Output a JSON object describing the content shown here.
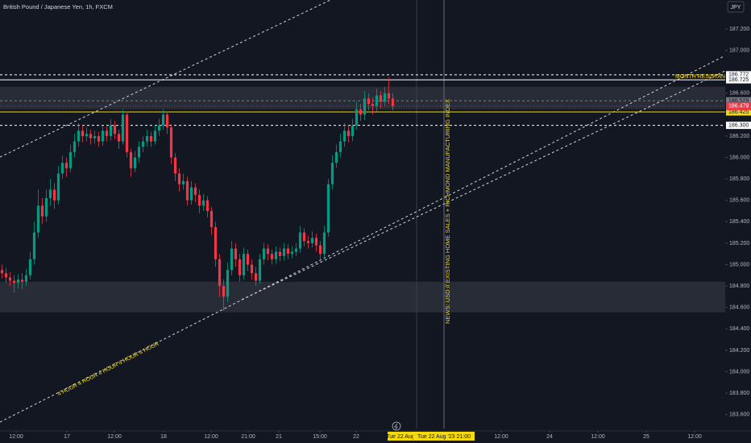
{
  "chart_data": {
    "type": "candlestick",
    "title": "British Pound / Japanese Yen, 1h, FXCM",
    "currency": "JPY",
    "up_color": "#089981",
    "down_color": "#f23645",
    "open": [
      184.95,
      184.92,
      184.88,
      184.85,
      184.83,
      184.86,
      184.84,
      184.9,
      185.05,
      185.3,
      185.55,
      185.45,
      185.62,
      185.7,
      185.6,
      185.85,
      185.95,
      185.9,
      186.05,
      186.15,
      186.25,
      186.2,
      186.22,
      186.18,
      186.2,
      186.15,
      186.25,
      186.2,
      186.3,
      186.22,
      186.15,
      186.4,
      186.05,
      185.9,
      186.0,
      186.1,
      186.15,
      186.2,
      186.15,
      186.25,
      186.3,
      186.4,
      186.28,
      186.0,
      185.85,
      185.75,
      185.78,
      185.6,
      185.72,
      185.65,
      185.55,
      185.6,
      185.5,
      185.35,
      185.05,
      184.8,
      184.7,
      184.95,
      185.15,
      185.05,
      184.9,
      185.1,
      185.0,
      184.92,
      184.85,
      185.05,
      185.15,
      185.1,
      185.05,
      185.12,
      185.08,
      185.15,
      185.1,
      185.12,
      185.15,
      185.3,
      185.22,
      185.2,
      185.25,
      185.18,
      185.1,
      185.3,
      185.75,
      185.95,
      186.05,
      186.15,
      186.25,
      186.2,
      186.3,
      186.45,
      186.4,
      186.55,
      186.5,
      186.48,
      186.58,
      186.52,
      186.6,
      186.55
    ],
    "high": [
      185.0,
      184.97,
      184.93,
      184.9,
      184.91,
      184.92,
      184.96,
      185.12,
      185.4,
      185.7,
      185.62,
      185.7,
      185.8,
      185.76,
      185.92,
      186.02,
      186.0,
      186.12,
      186.22,
      186.32,
      186.3,
      186.28,
      186.26,
      186.25,
      186.24,
      186.3,
      186.29,
      186.36,
      186.34,
      186.26,
      186.45,
      186.43,
      186.08,
      186.06,
      186.15,
      186.2,
      186.26,
      186.24,
      186.3,
      186.36,
      186.45,
      186.43,
      186.31,
      186.04,
      185.9,
      185.85,
      185.82,
      185.78,
      185.76,
      185.7,
      185.66,
      185.64,
      185.54,
      185.4,
      185.1,
      184.86,
      185.02,
      185.22,
      185.2,
      185.1,
      185.16,
      185.14,
      185.05,
      184.98,
      185.1,
      185.2,
      185.19,
      185.14,
      185.17,
      185.16,
      185.2,
      185.19,
      185.17,
      185.2,
      185.36,
      185.34,
      185.27,
      185.31,
      185.29,
      185.22,
      185.36,
      185.8,
      186.02,
      186.12,
      186.22,
      186.32,
      186.3,
      186.36,
      186.52,
      186.5,
      186.62,
      186.6,
      186.56,
      186.64,
      186.62,
      186.66,
      186.75,
      186.6
    ],
    "low": [
      184.87,
      184.83,
      184.8,
      184.74,
      184.78,
      184.77,
      184.8,
      184.86,
      185.0,
      185.25,
      185.38,
      185.4,
      185.55,
      185.52,
      185.56,
      185.8,
      185.82,
      185.86,
      186.0,
      186.1,
      186.14,
      186.15,
      186.12,
      186.13,
      186.1,
      186.11,
      186.15,
      186.16,
      186.17,
      186.08,
      186.12,
      186.0,
      185.82,
      185.86,
      185.95,
      186.05,
      186.1,
      186.1,
      186.12,
      186.2,
      186.26,
      186.22,
      185.94,
      185.78,
      185.68,
      185.7,
      185.55,
      185.56,
      185.58,
      185.48,
      185.5,
      185.44,
      185.28,
      184.98,
      184.7,
      184.57,
      184.65,
      184.9,
      184.98,
      184.84,
      184.86,
      184.94,
      184.86,
      184.8,
      184.82,
      185.0,
      185.04,
      185.0,
      185.01,
      185.03,
      185.04,
      185.05,
      185.06,
      185.08,
      185.11,
      185.17,
      185.15,
      185.16,
      185.12,
      185.02,
      185.05,
      185.26,
      185.7,
      185.9,
      186.0,
      186.1,
      186.14,
      186.15,
      186.26,
      186.34,
      186.35,
      186.44,
      186.4,
      186.43,
      186.46,
      186.48,
      186.5,
      186.44
    ],
    "close": [
      184.92,
      184.88,
      184.85,
      184.83,
      184.86,
      184.84,
      184.9,
      185.05,
      185.3,
      185.55,
      185.45,
      185.62,
      185.7,
      185.6,
      185.85,
      185.95,
      185.9,
      186.05,
      186.15,
      186.25,
      186.2,
      186.22,
      186.18,
      186.2,
      186.15,
      186.25,
      186.2,
      186.3,
      186.22,
      186.15,
      186.4,
      186.05,
      185.9,
      186.0,
      186.1,
      186.15,
      186.2,
      186.15,
      186.25,
      186.3,
      186.4,
      186.28,
      186.0,
      185.85,
      185.75,
      185.78,
      185.6,
      185.72,
      185.65,
      185.55,
      185.6,
      185.5,
      185.35,
      185.05,
      184.8,
      184.7,
      184.95,
      185.15,
      185.05,
      184.9,
      185.1,
      185.0,
      184.92,
      184.85,
      185.05,
      185.15,
      185.1,
      185.05,
      185.12,
      185.08,
      185.15,
      185.1,
      185.12,
      185.15,
      185.3,
      185.22,
      185.2,
      185.25,
      185.18,
      185.1,
      185.3,
      185.75,
      185.95,
      186.05,
      186.15,
      186.25,
      186.2,
      186.3,
      186.45,
      186.4,
      186.55,
      186.5,
      186.48,
      186.58,
      186.52,
      186.6,
      186.55,
      186.479
    ],
    "ylim": [
      183.47,
      187.47
    ],
    "yticks": [
      {
        "value": 187.2,
        "label": "187.200"
      },
      {
        "value": 187.0,
        "label": "187.000"
      },
      {
        "value": 186.6,
        "label": "186.600"
      },
      {
        "value": 186.2,
        "label": "186.200"
      },
      {
        "value": 186.0,
        "label": "186.000"
      },
      {
        "value": 185.8,
        "label": "185.800"
      },
      {
        "value": 185.6,
        "label": "185.600"
      },
      {
        "value": 185.4,
        "label": "185.400"
      },
      {
        "value": 185.2,
        "label": "185.200"
      },
      {
        "value": 185.0,
        "label": "185.000"
      },
      {
        "value": 184.8,
        "label": "184.800"
      },
      {
        "value": 184.6,
        "label": "184.600"
      },
      {
        "value": 184.4,
        "label": "184.400"
      },
      {
        "value": 184.2,
        "label": "184.200"
      },
      {
        "value": 184.0,
        "label": "184.000"
      },
      {
        "value": 183.8,
        "label": "183.800"
      },
      {
        "value": 183.6,
        "label": "183.600"
      }
    ],
    "xlim": [
      0,
      180
    ],
    "xticks": [
      {
        "value": 4,
        "label": "12:00"
      },
      {
        "value": 16.6,
        "label": "17"
      },
      {
        "value": 28.4,
        "label": "12:00"
      },
      {
        "value": 40.6,
        "label": "18"
      },
      {
        "value": 52.4,
        "label": "12:00"
      },
      {
        "value": 61.6,
        "label": "21:00"
      },
      {
        "value": 69.2,
        "label": "21"
      },
      {
        "value": 79.4,
        "label": "15:00"
      },
      {
        "value": 88.4,
        "label": "22"
      },
      {
        "value": 124.4,
        "label": "12:00"
      },
      {
        "value": 136.4,
        "label": "24"
      },
      {
        "value": 148.4,
        "label": "12:00"
      },
      {
        "value": 160.4,
        "label": "25"
      },
      {
        "value": 172.4,
        "label": "12:00"
      }
    ],
    "levels": [
      {
        "value": 186.772,
        "label": "186.772",
        "color": "#ffffff",
        "dashed": true
      },
      {
        "value": 186.725,
        "label": "186.725",
        "color": "#ffffff",
        "dashed": false
      },
      {
        "value": 186.529,
        "label": "186.529",
        "color": "#787b86",
        "dashed": true
      },
      {
        "value": 186.425,
        "label": "186.425",
        "color": "#f5d90a",
        "dashed": false
      },
      {
        "value": 186.3,
        "label": "186.300",
        "color": "#ffffff",
        "dashed": true
      }
    ],
    "last_price": {
      "value": 186.479,
      "label": "186.479"
    },
    "zones": [
      {
        "top": 186.66,
        "bottom": 186.45
      },
      {
        "top": 184.84,
        "bottom": 184.555
      }
    ],
    "annotations": [
      "MONTH RESISTANCE",
      "NEWS: USD // EXISTING HOME SALES + RICHMOND MANUFACTURING INDEX",
      "4 HOUR 4 HOUR  4 HOUR  4 HOUR  4 HOUR"
    ],
    "crosshair_labels": [
      "Tue 22 Aug",
      "Tue 22 Aug '23  21:00"
    ]
  }
}
